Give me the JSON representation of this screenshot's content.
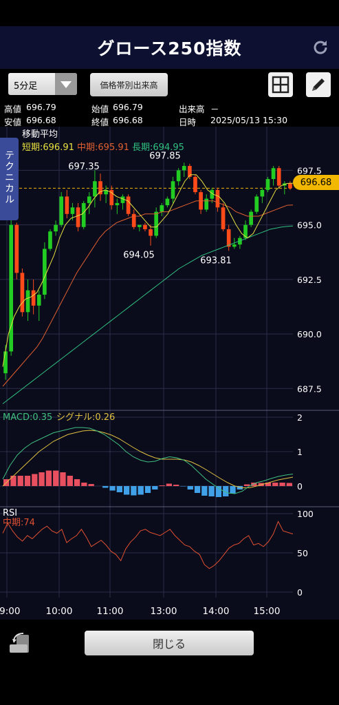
{
  "header": {
    "title": "グロース250指数",
    "reload_icon": "reload-icon"
  },
  "toolbar": {
    "interval": "5分足",
    "volume_profile_label": "価格帯別出来高",
    "layout_icon": "grid-icon",
    "draw_icon": "pencil-icon"
  },
  "info": {
    "high_label": "高値",
    "high": "696.79",
    "open_label": "始値",
    "open": "696.79",
    "volume_label": "出来高",
    "volume": "－",
    "low_label": "安値",
    "low": "696.68",
    "close_label": "終値",
    "close": "696.68",
    "datetime_label": "日時",
    "datetime": "2025/05/13 15:30"
  },
  "technical_tab": "テクニカル",
  "ma_legend": {
    "title": "移動平均",
    "short": "短期:696.91",
    "mid": "中期:695.91",
    "long": "長期:694.95"
  },
  "colors": {
    "up": "#22cc22",
    "down": "#ff4a1a",
    "short": "#e8e040",
    "mid": "#e06030",
    "long": "#30c080",
    "macd": "#40c080",
    "signal": "#e0c040",
    "accent": "#f2b800"
  },
  "chart_data": [
    {
      "type": "candlestick",
      "title": "グロース250指数",
      "yticks": [
        "697.5",
        "695.0",
        "692.5",
        "690.0",
        "687.5"
      ],
      "ylim": [
        686.5,
        699.5
      ],
      "xticks": [
        "09:00",
        "10:00",
        "11:00",
        "13:00",
        "14:00",
        "15:00"
      ],
      "last_price": "696.68",
      "annotations": [
        "697.35",
        "697.85",
        "694.05",
        "693.81"
      ],
      "candles": [
        [
          688.2,
          689.5,
          687.9,
          689.2
        ],
        [
          689.2,
          695.5,
          689,
          695.0
        ],
        [
          695.0,
          695.1,
          692.5,
          692.8
        ],
        [
          692.8,
          693,
          690.8,
          691.0
        ],
        [
          691.0,
          692.5,
          690.6,
          692.0
        ],
        [
          692.0,
          692.5,
          690.9,
          691.3
        ],
        [
          691.3,
          692.0,
          690.6,
          691.8
        ],
        [
          691.8,
          694.2,
          691.6,
          693.9
        ],
        [
          693.9,
          694.8,
          693.8,
          694.7
        ],
        [
          694.7,
          695.2,
          694.5,
          695.0
        ],
        [
          695.0,
          696.5,
          694.9,
          696.3
        ],
        [
          696.3,
          696.6,
          695.3,
          695.5
        ],
        [
          695.5,
          696.0,
          695.2,
          695.8
        ],
        [
          695.8,
          696.0,
          694.7,
          694.9
        ],
        [
          694.9,
          696.1,
          694.8,
          696.0
        ],
        [
          696.0,
          696.5,
          695.5,
          696.3
        ],
        [
          696.3,
          697.5,
          695.8,
          697.0
        ],
        [
          697.0,
          697.35,
          696.1,
          696.4
        ],
        [
          696.4,
          696.8,
          696.0,
          696.6
        ],
        [
          696.6,
          696.8,
          695.7,
          695.9
        ],
        [
          695.9,
          696.2,
          695.5,
          696.0
        ],
        [
          696.0,
          696.4,
          695.7,
          696.3
        ],
        [
          696.3,
          696.4,
          695.4,
          695.5
        ],
        [
          695.5,
          695.7,
          694.8,
          694.9
        ],
        [
          694.9,
          695.0,
          694.7,
          695.0
        ],
        [
          695.0,
          695.1,
          694.7,
          694.8
        ],
        [
          694.8,
          695.0,
          694.05,
          694.5
        ],
        [
          694.5,
          695.8,
          694.4,
          695.6
        ],
        [
          695.6,
          696.0,
          695.4,
          695.9
        ],
        [
          695.9,
          696.3,
          695.8,
          696.2
        ],
        [
          696.2,
          697.2,
          696.0,
          697.0
        ],
        [
          697.0,
          697.6,
          696.8,
          697.5
        ],
        [
          697.5,
          697.85,
          697.2,
          697.7
        ],
        [
          697.7,
          697.8,
          697.1,
          697.2
        ],
        [
          697.2,
          697.3,
          696.4,
          696.5
        ],
        [
          696.5,
          696.6,
          695.5,
          695.7
        ],
        [
          695.7,
          696.4,
          695.6,
          696.2
        ],
        [
          696.2,
          696.7,
          696.0,
          696.6
        ],
        [
          696.6,
          696.7,
          695.6,
          695.8
        ],
        [
          695.8,
          696.0,
          694.7,
          694.8
        ],
        [
          694.8,
          695.0,
          693.81,
          694.0
        ],
        [
          694.0,
          694.4,
          693.9,
          694.1
        ],
        [
          694.1,
          694.5,
          693.9,
          694.4
        ],
        [
          694.4,
          695.2,
          694.3,
          695.0
        ],
        [
          695.0,
          695.7,
          694.9,
          695.6
        ],
        [
          695.6,
          696.4,
          695.5,
          696.3
        ],
        [
          696.3,
          696.7,
          696.0,
          696.6
        ],
        [
          696.6,
          697.2,
          696.5,
          697.1
        ],
        [
          697.1,
          697.7,
          696.8,
          697.6
        ],
        [
          697.6,
          697.7,
          696.7,
          696.8
        ],
        [
          696.8,
          697.0,
          696.4,
          696.9
        ],
        [
          696.9,
          697.0,
          696.6,
          696.68
        ]
      ],
      "ma_short": [
        688.5,
        690,
        690.8,
        691.3,
        691.6,
        691.7,
        691.9,
        692.4,
        693,
        693.6,
        694.4,
        695,
        695.3,
        695.4,
        695.5,
        695.8,
        696.2,
        696.5,
        696.6,
        696.5,
        696.3,
        696.2,
        696.1,
        695.8,
        695.5,
        695.2,
        694.9,
        694.9,
        695.2,
        695.5,
        696,
        696.5,
        697,
        697.3,
        697.3,
        697,
        696.6,
        696.4,
        696.3,
        696,
        695.5,
        695,
        694.6,
        694.4,
        694.6,
        695.1,
        695.6,
        696.1,
        696.6,
        696.8,
        696.9,
        696.91
      ],
      "ma_mid": [
        687.6,
        687.9,
        688.2,
        688.5,
        688.8,
        689.1,
        689.4,
        689.8,
        690.3,
        690.8,
        691.3,
        691.8,
        692.3,
        692.8,
        693.2,
        693.6,
        694,
        694.4,
        694.7,
        694.9,
        695.1,
        695.2,
        695.3,
        695.4,
        695.4,
        695.5,
        695.5,
        695.5,
        695.6,
        695.6,
        695.7,
        695.8,
        695.9,
        696,
        696.1,
        696.1,
        696.1,
        696.1,
        696,
        695.9,
        695.8,
        695.6,
        695.5,
        695.4,
        695.4,
        695.4,
        695.5,
        695.6,
        695.7,
        695.8,
        695.9,
        695.91
      ],
      "ma_long": [
        686.8,
        687.0,
        687.2,
        687.4,
        687.6,
        687.8,
        688.0,
        688.2,
        688.4,
        688.6,
        688.8,
        689.0,
        689.2,
        689.4,
        689.6,
        689.8,
        690.0,
        690.2,
        690.4,
        690.6,
        690.8,
        691.0,
        691.2,
        691.4,
        691.6,
        691.8,
        692.0,
        692.2,
        692.4,
        692.6,
        692.8,
        693.0,
        693.15,
        693.3,
        693.45,
        693.6,
        693.7,
        693.8,
        693.9,
        694.0,
        694.1,
        694.2,
        694.3,
        694.4,
        694.5,
        694.6,
        694.7,
        694.8,
        694.85,
        694.9,
        694.93,
        694.95
      ]
    },
    {
      "type": "line",
      "title": "MACD",
      "label_macd": "MACD:0.35",
      "label_signal": "シグナル:0.26",
      "yticks": [
        "2",
        "1",
        "0"
      ],
      "ylim": [
        -0.6,
        2.2
      ],
      "macd": [
        0.2,
        0.6,
        0.9,
        1.1,
        1.25,
        1.35,
        1.45,
        1.55,
        1.6,
        1.65,
        1.7,
        1.7,
        1.68,
        1.6,
        1.5,
        1.35,
        1.2,
        1.0,
        0.85,
        0.75,
        0.7,
        0.72,
        0.8,
        0.85,
        0.82,
        0.75,
        0.6,
        0.4,
        0.2,
        0.05,
        -0.1,
        -0.2,
        -0.22,
        -0.15,
        0.0,
        0.1,
        0.15,
        0.22,
        0.28,
        0.32,
        0.35
      ],
      "signal": [
        0.0,
        0.2,
        0.4,
        0.6,
        0.8,
        1.0,
        1.15,
        1.3,
        1.4,
        1.5,
        1.55,
        1.6,
        1.62,
        1.6,
        1.55,
        1.48,
        1.38,
        1.25,
        1.12,
        1.0,
        0.9,
        0.82,
        0.78,
        0.78,
        0.78,
        0.76,
        0.7,
        0.6,
        0.48,
        0.35,
        0.22,
        0.1,
        0.0,
        -0.05,
        -0.05,
        0.0,
        0.06,
        0.12,
        0.18,
        0.22,
        0.26
      ],
      "hist": [
        0.2,
        0.3,
        0.3,
        0.3,
        0.35,
        0.4,
        0.45,
        0.45,
        0.4,
        0.3,
        0.2,
        0.1,
        0.06,
        0.0,
        -0.05,
        -0.13,
        -0.18,
        -0.25,
        -0.27,
        -0.25,
        -0.2,
        -0.1,
        0.02,
        0.07,
        0.04,
        -0.01,
        -0.1,
        -0.2,
        -0.28,
        -0.3,
        -0.32,
        -0.3,
        -0.22,
        -0.1,
        0.05,
        0.1,
        0.09,
        0.1,
        0.1,
        0.1,
        0.09
      ]
    },
    {
      "type": "line",
      "title": "RSI",
      "label_rsi": "中期:74",
      "yticks": [
        "100",
        "50",
        "0"
      ],
      "ylim": [
        0,
        100
      ],
      "rsi": [
        75,
        88,
        78,
        70,
        65,
        72,
        68,
        74,
        80,
        84,
        78,
        75,
        80,
        63,
        68,
        72,
        80,
        70,
        58,
        62,
        66,
        60,
        52,
        48,
        40,
        55,
        64,
        70,
        78,
        80,
        76,
        74,
        72,
        76,
        80,
        72,
        66,
        60,
        58,
        52,
        48,
        35,
        30,
        34,
        40,
        48,
        56,
        60,
        62,
        68,
        72,
        60,
        62,
        58,
        64,
        74,
        90,
        78,
        76,
        74
      ]
    }
  ],
  "footer": {
    "close_label": "閉じる",
    "rotate_icon": "rotate-screen-icon"
  }
}
